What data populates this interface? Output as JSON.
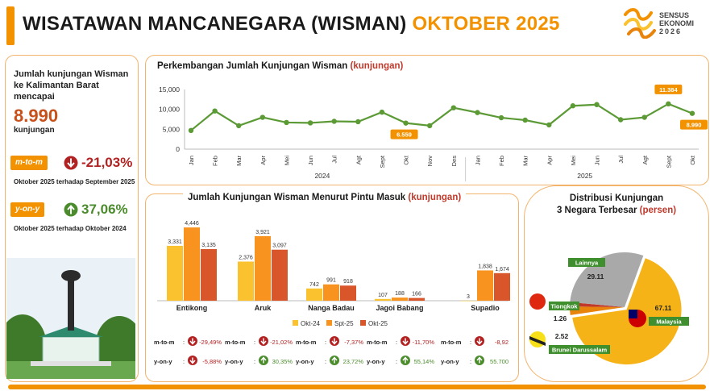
{
  "header": {
    "title_main": "WISATAWAN MANCANEGARA (WISMAN)",
    "title_period": "OKTOBER 2025",
    "logo_line1": "SENSUS",
    "logo_line2": "EKONOMI",
    "logo_line3": "2026"
  },
  "summary": {
    "heading": "Jumlah kunjungan Wisman ke Kalimantan Barat mencapai",
    "value": "8.990",
    "unit": "kunjungan",
    "mtm_label": "m-to-m",
    "mtm_value": "-21,03%",
    "mtm_note": "Oktober 2025 terhadap September 2025",
    "yoy_label": "y-on-y",
    "yoy_value": "37,06%",
    "yoy_note": "Oktober 2025 terhadap Oktober 2024"
  },
  "colors": {
    "accent": "#f39200",
    "okt24": "#f9c22e",
    "spt25": "#f7931e",
    "okt25": "#d9562b",
    "down": "#b22222",
    "up": "#4a8b2c",
    "line": "#5b9a35"
  },
  "chart_data": [
    {
      "type": "line",
      "title": "Perkembangan Jumlah Kunjungan Wisman",
      "unit_label": "(kunjungan)",
      "categories": [
        "Jan",
        "Feb",
        "Mar",
        "Apr",
        "Mei",
        "Jun",
        "Jul",
        "Agt",
        "Sept",
        "Okt",
        "Nov",
        "Des",
        "Jan",
        "Feb",
        "Mar",
        "Apr",
        "Mei",
        "Jun",
        "Jul",
        "Agt",
        "Sept",
        "Okt"
      ],
      "year_labels": [
        "2024",
        "2025"
      ],
      "values": [
        4700,
        9600,
        5900,
        8000,
        6700,
        6600,
        7000,
        6900,
        9300,
        6559,
        5900,
        10400,
        9200,
        7900,
        7300,
        6100,
        10900,
        11200,
        7400,
        8000,
        11384,
        8990
      ],
      "labels": [
        {
          "index": 9,
          "text": "6.559"
        },
        {
          "index": 20,
          "text": "11.384"
        },
        {
          "index": 21,
          "text": "8.990"
        }
      ],
      "yticks": [
        "0",
        "5,000",
        "10,000",
        "15,000"
      ],
      "ylim": [
        0,
        15000
      ]
    },
    {
      "type": "bar",
      "title": "Jumlah Kunjungan Wisman Menurut Pintu Masuk",
      "unit_label": "(kunjungan)",
      "categories": [
        "Entikong",
        "Aruk",
        "Nanga Badau",
        "Jagoi Babang",
        "Supadio"
      ],
      "series": [
        {
          "name": "Okt-24",
          "values": [
            3331,
            2376,
            742,
            107,
            3
          ],
          "labels": [
            "3,331",
            "2,376",
            "742",
            "107",
            "3"
          ]
        },
        {
          "name": "Spt-25",
          "values": [
            4446,
            3921,
            991,
            188,
            1838
          ],
          "labels": [
            "4,446",
            "3,921",
            "991",
            "188",
            "1,838"
          ]
        },
        {
          "name": "Okt-25",
          "values": [
            3135,
            3097,
            918,
            166,
            1674
          ],
          "labels": [
            "3,135",
            "3,097",
            "918",
            "166",
            "1,674"
          ]
        }
      ],
      "ylim": [
        0,
        4600
      ],
      "mtm_label": "m-to-m",
      "yoy_label": "y-on-y",
      "mtm": [
        "-29,49%",
        "-21,02%",
        "-7,37%",
        "-11,70%",
        "-8,92"
      ],
      "yoy": [
        "-5,88%",
        "30,35%",
        "23,72%",
        "55,14%",
        "55.700"
      ],
      "mtm_dir": [
        "down",
        "down",
        "down",
        "down",
        "down"
      ],
      "yoy_dir": [
        "down",
        "up",
        "up",
        "up",
        "up"
      ]
    },
    {
      "type": "pie",
      "title_line1": "Distribusi Kunjungan",
      "title_line2": "3 Negara Terbesar",
      "unit_label": "(persen)",
      "slices": [
        {
          "name": "Malaysia",
          "value": 67.11,
          "label": "67.11",
          "color": "#f5b317"
        },
        {
          "name": "Brunei Darussalam",
          "value": 2.52,
          "label": "2.52",
          "color": "#e8830c"
        },
        {
          "name": "Tiongkok",
          "value": 1.26,
          "label": "1.26",
          "color": "#c0392b"
        },
        {
          "name": "Lainnya",
          "value": 29.11,
          "label": "29.11",
          "color": "#a9a9a9"
        }
      ]
    }
  ]
}
